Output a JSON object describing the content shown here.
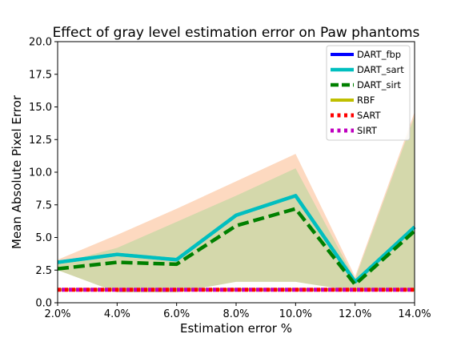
{
  "chart_data": {
    "type": "line",
    "title": "Effect of gray level estimation error on Paw phantoms",
    "xlabel": "Estimation error %",
    "ylabel": "Mean Absolute Pixel Error",
    "categories": [
      "2.0%",
      "4.0%",
      "6.0%",
      "8.0%",
      "10.0%",
      "12.0%",
      "14.0%"
    ],
    "x": [
      2,
      4,
      6,
      8,
      10,
      12,
      14
    ],
    "xlim": [
      2,
      14
    ],
    "ylim": [
      0,
      20
    ],
    "yticks": [
      0.0,
      2.5,
      5.0,
      7.5,
      10.0,
      12.5,
      15.0,
      17.5,
      20.0
    ],
    "ytick_labels": [
      "0.0",
      "2.5",
      "5.0",
      "7.5",
      "10.0",
      "12.5",
      "15.0",
      "17.5",
      "20.0"
    ],
    "grid": false,
    "legend_position": "top-right",
    "series": [
      {
        "name": "DART_fbp",
        "values": [
          3.1,
          3.7,
          3.3,
          6.7,
          8.2,
          1.6,
          5.8
        ],
        "color": "#0000ff",
        "style": "solid"
      },
      {
        "name": "DART_sart",
        "values": [
          3.1,
          3.7,
          3.3,
          6.7,
          8.2,
          1.6,
          5.8
        ],
        "color": "#00bfbf",
        "style": "solid"
      },
      {
        "name": "DART_sirt",
        "values": [
          2.6,
          3.1,
          2.95,
          5.9,
          7.2,
          1.4,
          5.5
        ],
        "color": "#008000",
        "style": "dashed"
      },
      {
        "name": "RBF",
        "values": [
          1.0,
          1.0,
          1.0,
          1.0,
          1.0,
          1.0,
          1.0
        ],
        "color": "#bfbf00",
        "style": "solid"
      },
      {
        "name": "SART",
        "values": [
          1.0,
          1.0,
          1.0,
          1.0,
          1.0,
          1.0,
          1.0
        ],
        "color": "#ff0000",
        "style": "dotted"
      },
      {
        "name": "SIRT",
        "values": [
          1.0,
          1.0,
          1.0,
          1.0,
          1.0,
          1.0,
          1.0
        ],
        "color": "#bf00bf",
        "style": "dotted"
      }
    ],
    "bands": [
      {
        "name": "DART_sart range",
        "lower": [
          2.9,
          1.0,
          1.0,
          1.9,
          1.9,
          1.2,
          1.2
        ],
        "upper": [
          3.3,
          5.2,
          7.2,
          9.3,
          11.4,
          2.0,
          14.6
        ],
        "color": "#fdd9c0"
      },
      {
        "name": "DART_sirt range",
        "lower": [
          2.5,
          0.8,
          0.8,
          1.6,
          1.6,
          0.9,
          0.9
        ],
        "upper": [
          3.0,
          4.2,
          6.2,
          8.2,
          10.3,
          1.8,
          14.3
        ],
        "color": "#d4d8ab"
      }
    ]
  }
}
